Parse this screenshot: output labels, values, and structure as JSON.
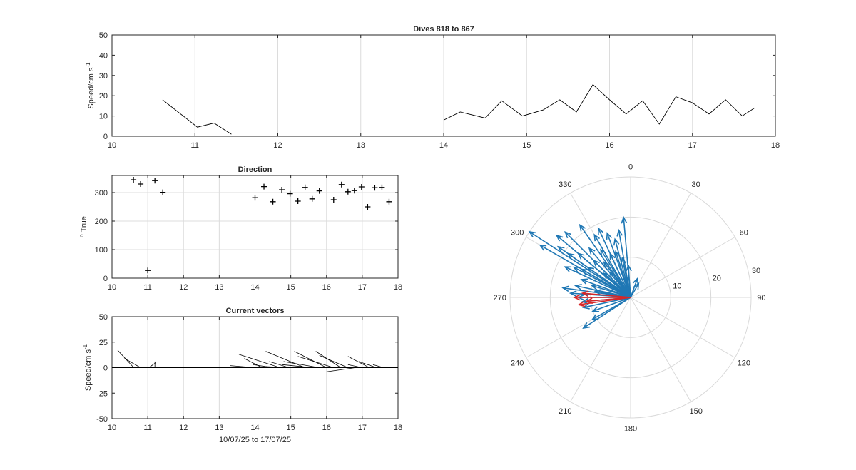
{
  "figure": {
    "title": "Dives 818 to 867"
  },
  "colors": {
    "axis": "#262626",
    "grid": "#dcdcdc",
    "line": "#000000",
    "polar_blue": "#1f77b4",
    "polar_red": "#d62728",
    "polar_grid": "#d9d9d9"
  },
  "chart_data": [
    {
      "id": "speed",
      "type": "line",
      "title": "Dives 818 to 867",
      "xlabel": "",
      "ylabel": "Speed/cm s",
      "ylabel_sup": "-1",
      "xlim": [
        10,
        18
      ],
      "ylim": [
        0,
        50
      ],
      "xticks": [
        10,
        11,
        12,
        13,
        14,
        15,
        16,
        17,
        18
      ],
      "yticks": [
        0,
        10,
        20,
        30,
        40,
        50
      ],
      "grid": "x",
      "segments": [
        {
          "x": [
            10.61,
            11.03,
            11.23,
            11.44
          ],
          "y": [
            18,
            4.5,
            6.5,
            1
          ]
        },
        {
          "x": [
            14.0,
            14.2,
            14.5,
            14.7,
            14.95,
            15.2,
            15.4,
            15.6,
            15.8,
            16.0,
            16.2,
            16.4,
            16.6,
            16.8,
            17.0,
            17.2,
            17.4,
            17.6,
            17.75
          ],
          "y": [
            8,
            12,
            9,
            17.5,
            10,
            13,
            18,
            12,
            25.5,
            18,
            11,
            17.5,
            6,
            19.5,
            16.5,
            11,
            18,
            10,
            14
          ]
        }
      ]
    },
    {
      "id": "direction",
      "type": "scatter",
      "title": "Direction",
      "xlabel": "",
      "ylabel": "True",
      "ylabel_sup": "o",
      "xlim": [
        10,
        18
      ],
      "ylim": [
        0,
        360
      ],
      "xticks": [
        10,
        11,
        12,
        13,
        14,
        15,
        16,
        17,
        18
      ],
      "yticks": [
        0,
        100,
        200,
        300
      ],
      "grid": "xy",
      "marker": "+",
      "points": [
        [
          10.6,
          345
        ],
        [
          10.8,
          330
        ],
        [
          11.0,
          27
        ],
        [
          11.2,
          342
        ],
        [
          11.42,
          301
        ],
        [
          14.0,
          282
        ],
        [
          14.25,
          321
        ],
        [
          14.5,
          268
        ],
        [
          14.75,
          310
        ],
        [
          14.98,
          296
        ],
        [
          15.2,
          270
        ],
        [
          15.4,
          318
        ],
        [
          15.6,
          278
        ],
        [
          15.8,
          306
        ],
        [
          16.2,
          275
        ],
        [
          16.42,
          328
        ],
        [
          16.6,
          303
        ],
        [
          16.78,
          307
        ],
        [
          16.98,
          320
        ],
        [
          17.15,
          250
        ],
        [
          17.35,
          317
        ],
        [
          17.55,
          318
        ],
        [
          17.75,
          268
        ]
      ]
    },
    {
      "id": "vectors",
      "type": "line",
      "title": "Current vectors",
      "xlabel": "10/07/25 to 17/07/25",
      "ylabel": "Speed/cm s",
      "ylabel_sup": "-1",
      "xlim": [
        10,
        18
      ],
      "ylim": [
        -50,
        50
      ],
      "xticks": [
        10,
        11,
        12,
        13,
        14,
        15,
        16,
        17,
        18
      ],
      "yticks": [
        -50,
        -25,
        0,
        25,
        50
      ],
      "grid": "x",
      "sticks": [
        {
          "x": 10.61,
          "u": -0.45,
          "v": 17
        },
        {
          "x": 10.8,
          "u": -0.45,
          "v": 9
        },
        {
          "x": 11.03,
          "u": 0.2,
          "v": 5
        },
        {
          "x": 11.2,
          "u": 0.0,
          "v": 6
        },
        {
          "x": 11.44,
          "u": -0.2,
          "v": 0.5
        },
        {
          "x": 14.0,
          "u": -0.7,
          "v": 2
        },
        {
          "x": 14.2,
          "u": -0.5,
          "v": 9
        },
        {
          "x": 14.5,
          "u": -0.55,
          "v": 3
        },
        {
          "x": 14.7,
          "u": -1.15,
          "v": 13
        },
        {
          "x": 14.95,
          "u": -0.55,
          "v": 6
        },
        {
          "x": 15.2,
          "u": -0.9,
          "v": 1
        },
        {
          "x": 15.4,
          "u": -1.1,
          "v": 16
        },
        {
          "x": 15.6,
          "u": -0.85,
          "v": 3
        },
        {
          "x": 15.8,
          "u": -1.0,
          "v": 6
        },
        {
          "x": 16.0,
          "u": -0.9,
          "v": 16
        },
        {
          "x": 16.2,
          "u": -1.0,
          "v": 11
        },
        {
          "x": 16.4,
          "u": -0.7,
          "v": 16
        },
        {
          "x": 16.6,
          "u": -0.8,
          "v": 12
        },
        {
          "x": 16.8,
          "u": -0.8,
          "v": -4
        },
        {
          "x": 17.0,
          "u": -0.4,
          "v": 3
        },
        {
          "x": 17.2,
          "u": -0.6,
          "v": 11
        },
        {
          "x": 17.4,
          "u": -0.5,
          "v": 6
        },
        {
          "x": 17.6,
          "u": -0.3,
          "v": 3
        }
      ]
    },
    {
      "id": "polar",
      "type": "polar-compass",
      "title": "",
      "theta_ticks": [
        0,
        30,
        60,
        90,
        120,
        150,
        180,
        210,
        240,
        270,
        300,
        330
      ],
      "r_ticks": [
        10,
        20,
        30
      ],
      "rmax": 30,
      "zero_location": "top",
      "direction": "clockwise",
      "vectors_blue": [
        [
          303,
          30
        ],
        [
          300,
          26
        ],
        [
          305,
          22
        ],
        [
          310,
          24
        ],
        [
          315,
          23
        ],
        [
          325,
          22
        ],
        [
          330,
          18
        ],
        [
          335,
          19
        ],
        [
          340,
          17
        ],
        [
          345,
          15
        ],
        [
          350,
          17
        ],
        [
          355,
          20
        ],
        [
          320,
          16
        ],
        [
          328,
          14
        ],
        [
          310,
          17
        ],
        [
          305,
          19
        ],
        [
          298,
          16
        ],
        [
          290,
          13
        ],
        [
          287,
          10
        ],
        [
          282,
          14
        ],
        [
          278,
          17
        ],
        [
          274,
          15
        ],
        [
          270,
          13
        ],
        [
          265,
          12
        ],
        [
          258,
          12
        ],
        [
          250,
          10
        ],
        [
          240,
          11
        ],
        [
          237,
          14
        ],
        [
          295,
          18
        ],
        [
          300,
          14
        ],
        [
          305,
          13
        ],
        [
          315,
          13
        ],
        [
          323,
          11
        ],
        [
          335,
          12
        ],
        [
          342,
          12
        ],
        [
          348,
          10
        ],
        [
          356,
          8
        ],
        [
          20,
          5
        ],
        [
          30,
          4
        ],
        [
          312,
          9
        ],
        [
          280,
          9
        ],
        [
          320,
          8
        ]
      ],
      "vectors_red": [
        [
          270,
          14
        ],
        [
          275,
          12
        ],
        [
          265,
          11
        ],
        [
          262,
          13
        ]
      ]
    }
  ]
}
